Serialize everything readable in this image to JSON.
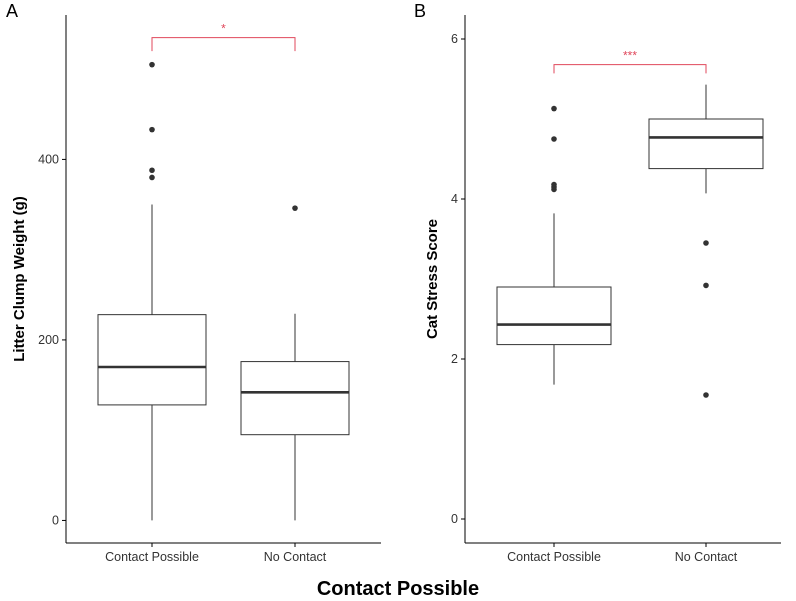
{
  "shared_xlabel": "Contact Possible",
  "colors": {
    "box_line": "#333333",
    "axis": "#000000",
    "significance": "#e0475b",
    "outlier": "#333333"
  },
  "chart_data": [
    {
      "type": "box",
      "panel_label": "A",
      "ylabel": "Litter Clump Weight (g)",
      "ylim": [
        -25,
        560
      ],
      "yticks": [
        0,
        200,
        400
      ],
      "categories": [
        "Contact Possible",
        "No Contact"
      ],
      "boxes": [
        {
          "category": "Contact Possible",
          "whisker_low": 0,
          "q1": 128,
          "median": 170,
          "q3": 228,
          "whisker_high": 350,
          "outliers": [
            380,
            388,
            433,
            505
          ]
        },
        {
          "category": "No Contact",
          "whisker_low": 0,
          "q1": 95,
          "median": 142,
          "q3": 176,
          "whisker_high": 229,
          "outliers": [
            346
          ]
        }
      ],
      "significance": {
        "label": "*",
        "y": 535,
        "drop_to": 520
      }
    },
    {
      "type": "box",
      "panel_label": "B",
      "ylabel": "Cat Stress Score",
      "ylim": [
        -0.3,
        6.3
      ],
      "yticks": [
        0,
        2,
        4,
        6
      ],
      "categories": [
        "Contact Possible",
        "No Contact"
      ],
      "boxes": [
        {
          "category": "Contact Possible",
          "whisker_low": 1.68,
          "q1": 2.18,
          "median": 2.43,
          "q3": 2.9,
          "whisker_high": 3.82,
          "outliers": [
            4.12,
            4.15,
            4.18,
            4.75,
            5.13
          ]
        },
        {
          "category": "No Contact",
          "whisker_low": 4.07,
          "q1": 4.38,
          "median": 4.77,
          "q3": 5.0,
          "whisker_high": 5.43,
          "outliers": [
            3.45,
            2.92,
            1.55
          ]
        }
      ],
      "significance": {
        "label": "***",
        "y": 5.68,
        "drop_to": 5.57
      }
    }
  ]
}
